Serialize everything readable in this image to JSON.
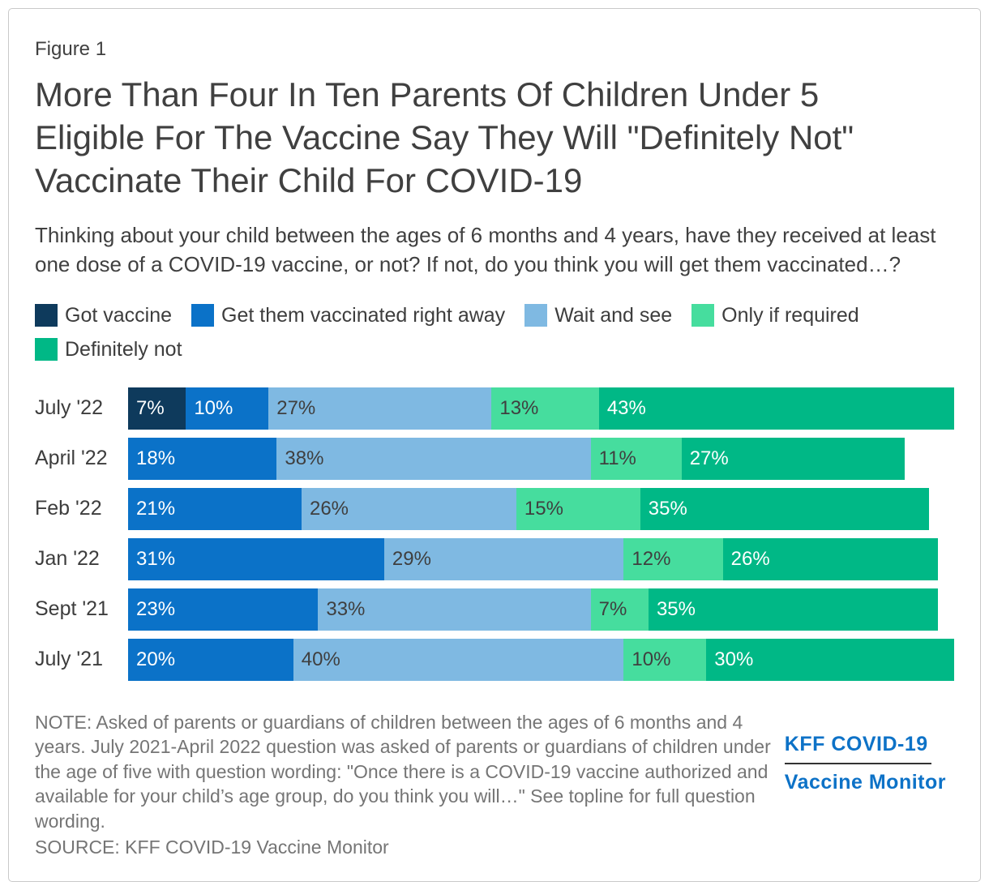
{
  "figure_label": "Figure 1",
  "title": "More Than Four In Ten Parents Of Children Under 5 Eligible For The Vaccine Say They Will \"Definitely Not\" Vaccinate Their Child For COVID-19",
  "subtitle": "Thinking about your child between the ages of 6 months and 4 years, have they received at least one dose of a COVID-19 vaccine, or not? If not, do you think you will get them vaccinated…?",
  "chart_data": {
    "type": "bar",
    "orientation": "horizontal",
    "stacked": true,
    "unit": "%",
    "x_max": 100,
    "legend_position": "top",
    "value_labels": "inside-left",
    "categories": [
      "July '22",
      "April '22",
      "Feb '22",
      "Jan '22",
      "Sept '21",
      "July '21"
    ],
    "series": [
      {
        "name": "Got vaccine",
        "color": "#0e3a5c",
        "label_color": "#ffffff",
        "values": [
          7,
          null,
          null,
          null,
          null,
          null
        ]
      },
      {
        "name": "Get them vaccinated right away",
        "color": "#0b72c8",
        "label_color": "#ffffff",
        "values": [
          10,
          18,
          21,
          31,
          23,
          20
        ]
      },
      {
        "name": "Wait and see",
        "color": "#7fb9e2",
        "label_color": "#3f3f3f",
        "values": [
          27,
          38,
          26,
          29,
          33,
          40
        ]
      },
      {
        "name": "Only if required",
        "color": "#46dd9e",
        "label_color": "#3f3f3f",
        "values": [
          13,
          11,
          15,
          12,
          7,
          10
        ]
      },
      {
        "name": "Definitely not",
        "color": "#00b886",
        "label_color": "#ffffff",
        "values": [
          43,
          27,
          35,
          26,
          35,
          30
        ]
      }
    ]
  },
  "note": "NOTE: Asked of parents or guardians of children between the ages of 6 months and 4 years. July 2021-April 2022 question was asked of parents or guardians of children under the age of five with question wording: \"Once there is a COVID-19 vaccine authorized and available for your child’s age group, do you think you will…\" See topline for full question wording.",
  "source": "SOURCE: KFF COVID-19 Vaccine Monitor",
  "logo": {
    "line1": "KFF COVID-19",
    "line2": "Vaccine Monitor",
    "color": "#0d72c7"
  }
}
